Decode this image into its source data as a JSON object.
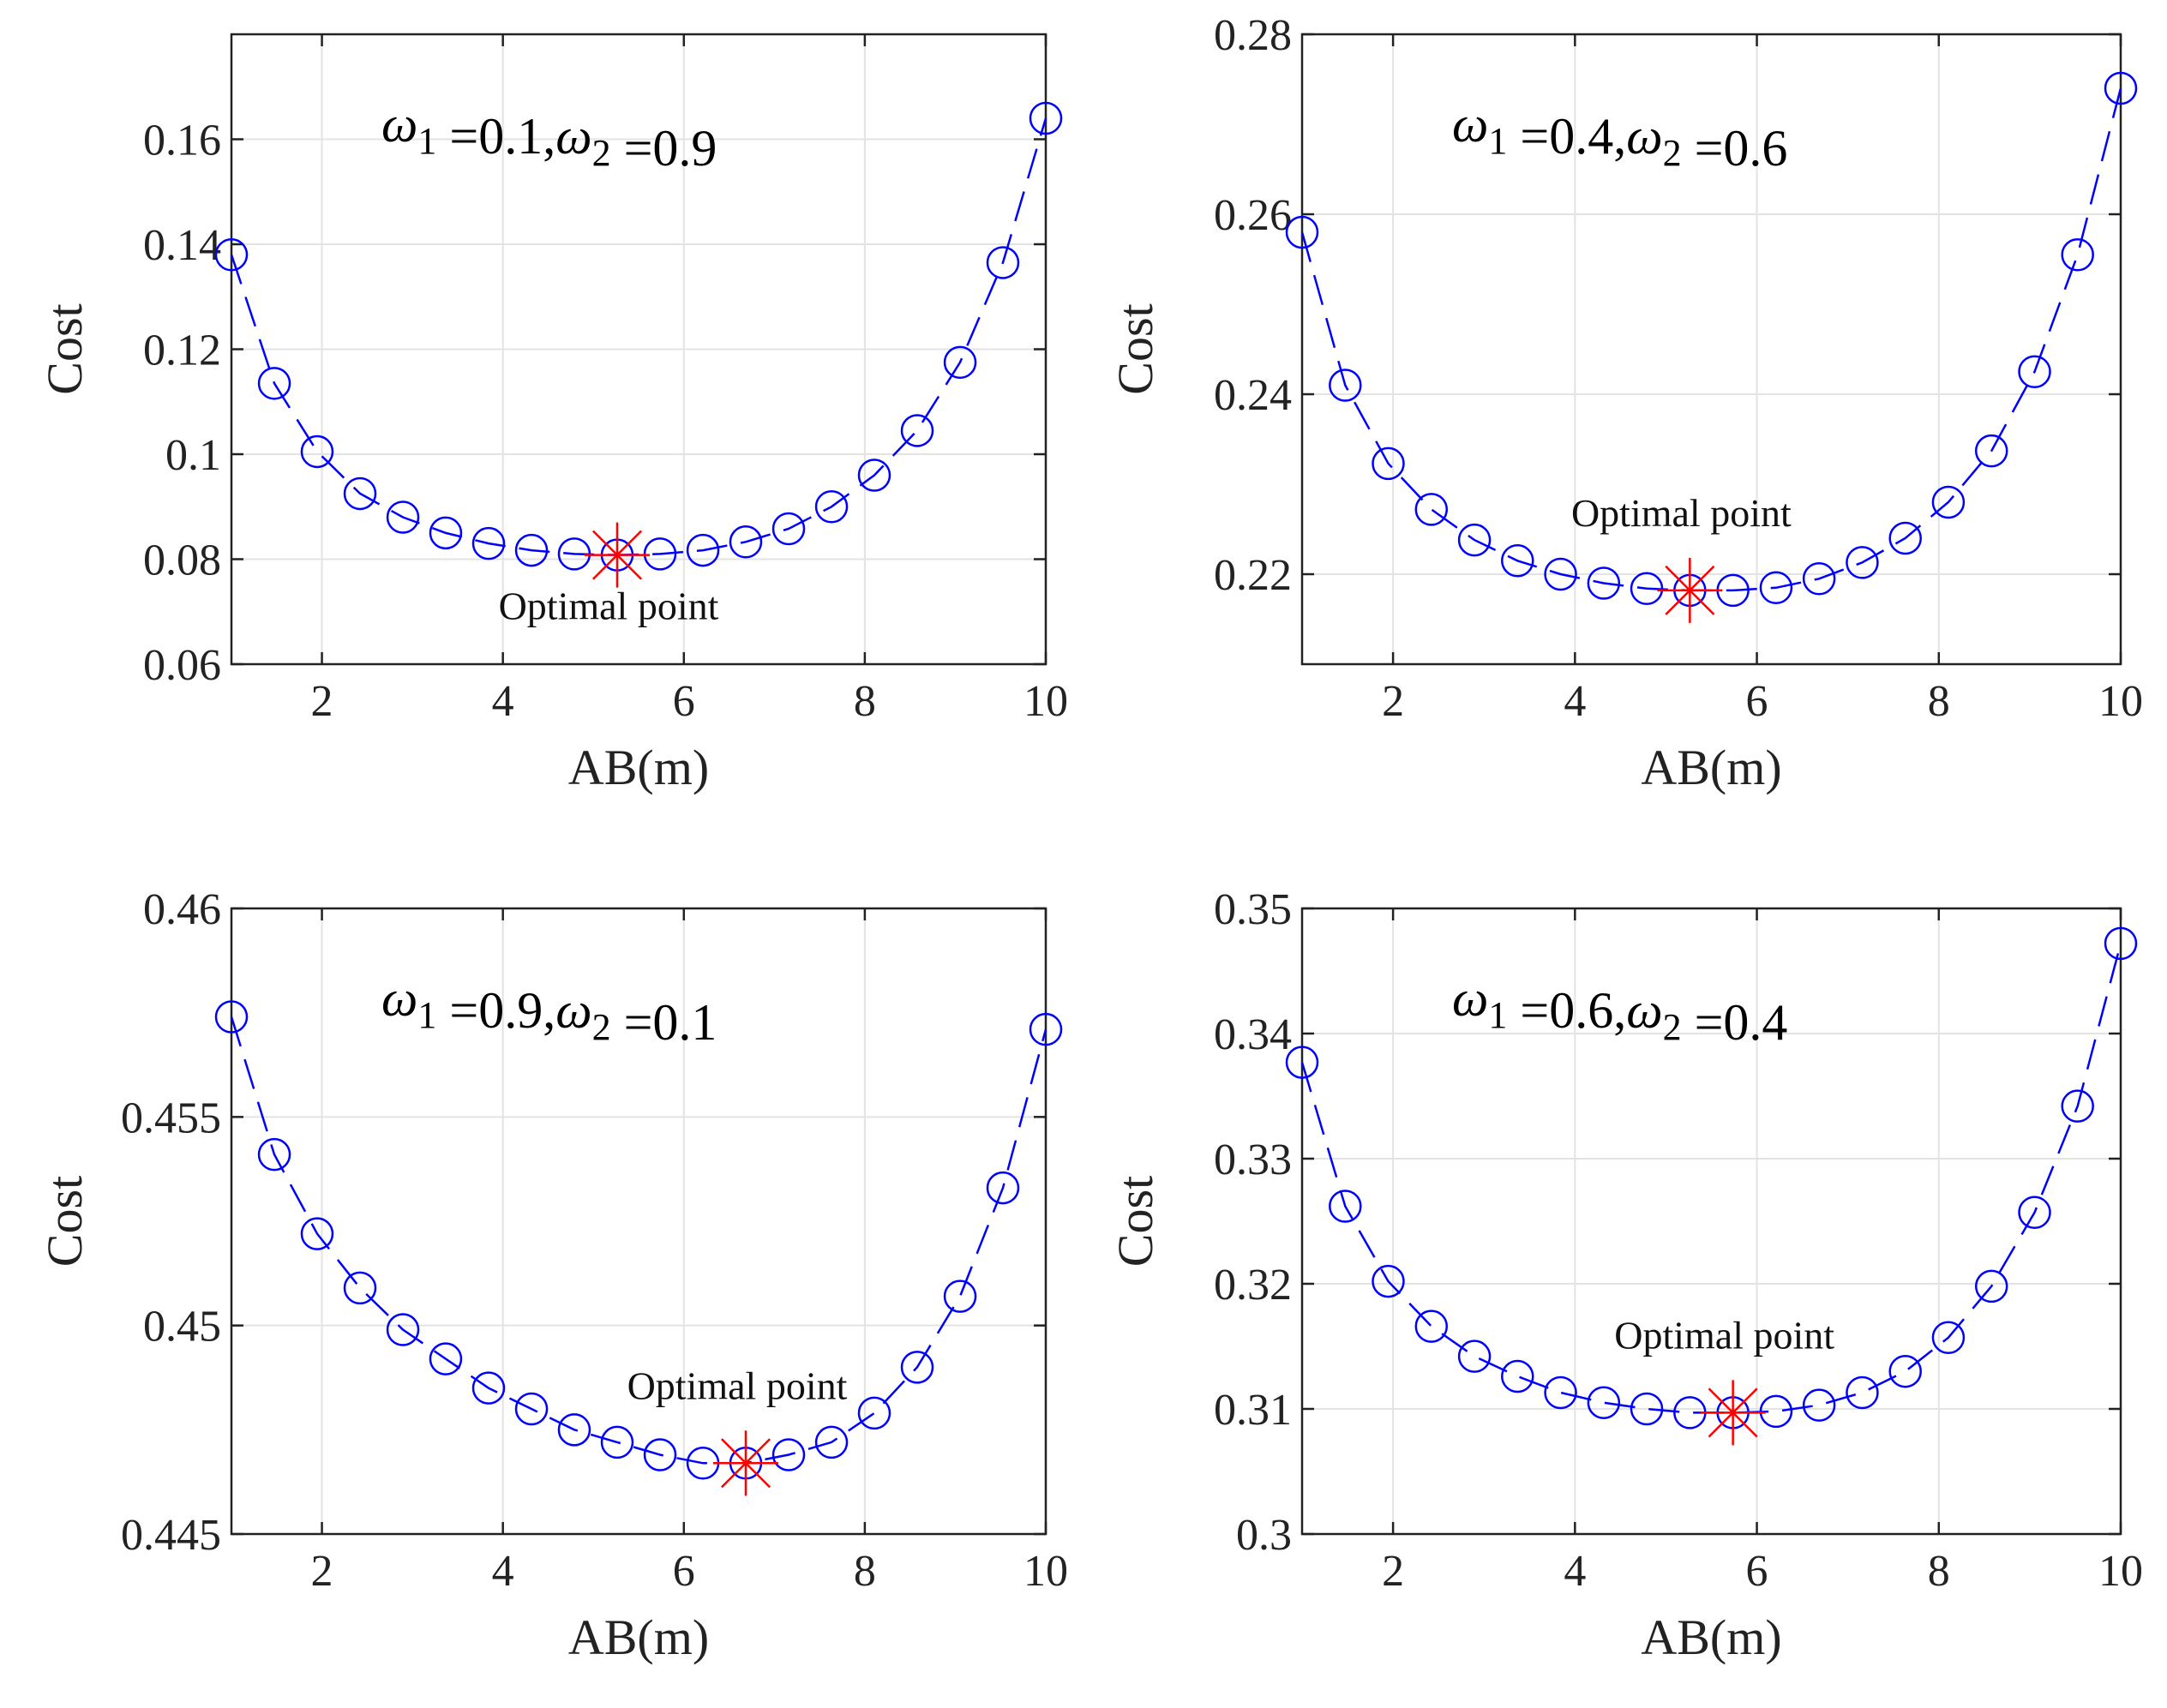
{
  "colors": {
    "series": "#0000ff",
    "optimal": "#ff0000",
    "grid": "#e3e3e3",
    "axis": "#222222"
  },
  "chart_data": [
    {
      "type": "line",
      "title_omega1_value": "0.1",
      "title_omega2_value": "0.9",
      "xlabel": "AB(m)",
      "ylabel": "Cost",
      "xlim": [
        1,
        10
      ],
      "ylim": [
        0.06,
        0.18
      ],
      "xticks": [
        "2",
        "4",
        "6",
        "8",
        "10"
      ],
      "yticks": [
        "0.06",
        "0.08",
        "0.1",
        "0.12",
        "0.14",
        "0.16"
      ],
      "grid": true,
      "series": [
        {
          "name": "Cost",
          "x": [
            1.0,
            1.474,
            1.947,
            2.421,
            2.895,
            3.368,
            3.842,
            4.316,
            4.789,
            5.263,
            5.737,
            6.211,
            6.684,
            7.158,
            7.632,
            8.105,
            8.579,
            9.053,
            9.526,
            10.0
          ],
          "y": [
            0.138,
            0.1135,
            0.1005,
            0.0925,
            0.088,
            0.085,
            0.083,
            0.0817,
            0.081,
            0.0808,
            0.081,
            0.0817,
            0.0833,
            0.0858,
            0.09,
            0.096,
            0.1045,
            0.1175,
            0.1365,
            0.164
          ]
        }
      ],
      "optimal": {
        "x": 5.263,
        "y": 0.0808,
        "label": "Optimal point",
        "label_position": "below"
      }
    },
    {
      "type": "line",
      "title_omega1_value": "0.4",
      "title_omega2_value": "0.6",
      "xlabel": "AB(m)",
      "ylabel": "Cost",
      "xlim": [
        1,
        10
      ],
      "ylim": [
        0.21,
        0.28
      ],
      "xticks": [
        "2",
        "4",
        "6",
        "8",
        "10"
      ],
      "yticks": [
        "0.22",
        "0.24",
        "0.26",
        "0.28"
      ],
      "grid": true,
      "series": [
        {
          "name": "Cost",
          "x": [
            1.0,
            1.474,
            1.947,
            2.421,
            2.895,
            3.368,
            3.842,
            4.316,
            4.789,
            5.263,
            5.737,
            6.211,
            6.684,
            7.158,
            7.632,
            8.105,
            8.579,
            9.053,
            9.526,
            10.0
          ],
          "y": [
            0.258,
            0.241,
            0.2323,
            0.2272,
            0.2238,
            0.2215,
            0.22,
            0.219,
            0.2184,
            0.2182,
            0.2182,
            0.2185,
            0.2195,
            0.2213,
            0.224,
            0.228,
            0.2337,
            0.2425,
            0.2555,
            0.274
          ]
        }
      ],
      "optimal": {
        "x": 5.263,
        "y": 0.2182,
        "label": "Optimal point",
        "label_position": "above"
      }
    },
    {
      "type": "line",
      "title_omega1_value": "0.9",
      "title_omega2_value": "0.1",
      "xlabel": "AB(m)",
      "ylabel": "Cost",
      "xlim": [
        1,
        10
      ],
      "ylim": [
        0.445,
        0.46
      ],
      "xticks": [
        "2",
        "4",
        "6",
        "8",
        "10"
      ],
      "yticks": [
        "0.445",
        "0.45",
        "0.455",
        "0.46"
      ],
      "grid": true,
      "series": [
        {
          "name": "Cost",
          "x": [
            1.0,
            1.474,
            1.947,
            2.421,
            2.895,
            3.368,
            3.842,
            4.316,
            4.789,
            5.263,
            5.737,
            6.211,
            6.684,
            7.158,
            7.632,
            8.105,
            8.579,
            9.053,
            9.526,
            10.0
          ],
          "y": [
            0.4574,
            0.4541,
            0.4522,
            0.4509,
            0.4499,
            0.4492,
            0.4485,
            0.448,
            0.4475,
            0.4472,
            0.4469,
            0.4467,
            0.4467,
            0.4469,
            0.4472,
            0.4479,
            0.449,
            0.4507,
            0.4533,
            0.4571
          ]
        }
      ],
      "optimal": {
        "x": 6.684,
        "y": 0.4467,
        "label": "Optimal point",
        "label_position": "above"
      }
    },
    {
      "type": "line",
      "title_omega1_value": "0.6",
      "title_omega2_value": "0.4",
      "xlabel": "AB(m)",
      "ylabel": "Cost",
      "xlim": [
        1,
        10
      ],
      "ylim": [
        0.3,
        0.35
      ],
      "xticks": [
        "2",
        "4",
        "6",
        "8",
        "10"
      ],
      "yticks": [
        "0.3",
        "0.31",
        "0.32",
        "0.33",
        "0.34",
        "0.35"
      ],
      "grid": true,
      "series": [
        {
          "name": "Cost",
          "x": [
            1.0,
            1.474,
            1.947,
            2.421,
            2.895,
            3.368,
            3.842,
            4.316,
            4.789,
            5.263,
            5.737,
            6.211,
            6.684,
            7.158,
            7.632,
            8.105,
            8.579,
            9.053,
            9.526,
            10.0
          ],
          "y": [
            0.3377,
            0.3262,
            0.3202,
            0.3166,
            0.3142,
            0.3126,
            0.3113,
            0.3105,
            0.31,
            0.3097,
            0.3097,
            0.3098,
            0.3103,
            0.3113,
            0.313,
            0.3157,
            0.3198,
            0.3257,
            0.3342,
            0.3472
          ]
        }
      ],
      "optimal": {
        "x": 5.737,
        "y": 0.3097,
        "label": "Optimal point",
        "label_position": "above"
      }
    }
  ]
}
